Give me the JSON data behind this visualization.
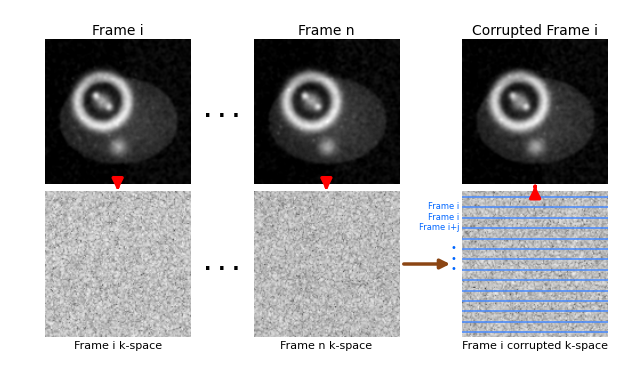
{
  "title_row1": [
    "Frame i",
    "Frame n",
    "Corrupted Frame i"
  ],
  "label_row2": [
    "Frame i k-space",
    "Frame n k-space",
    "Frame i corrupted k-space"
  ],
  "arrow_color_down": "#FF0000",
  "arrow_color_right": "#8B4513",
  "label_color_blue": "#0066FF",
  "frame_labels": [
    "Frame i",
    "Frame i",
    "Frame i+j"
  ],
  "bg_color": "#FFFFFF",
  "blue_line_color": "#4488FF",
  "num_blue_lines": 14,
  "dots_fontsize": 14,
  "title_fontsize": 10,
  "label_fontsize": 8
}
